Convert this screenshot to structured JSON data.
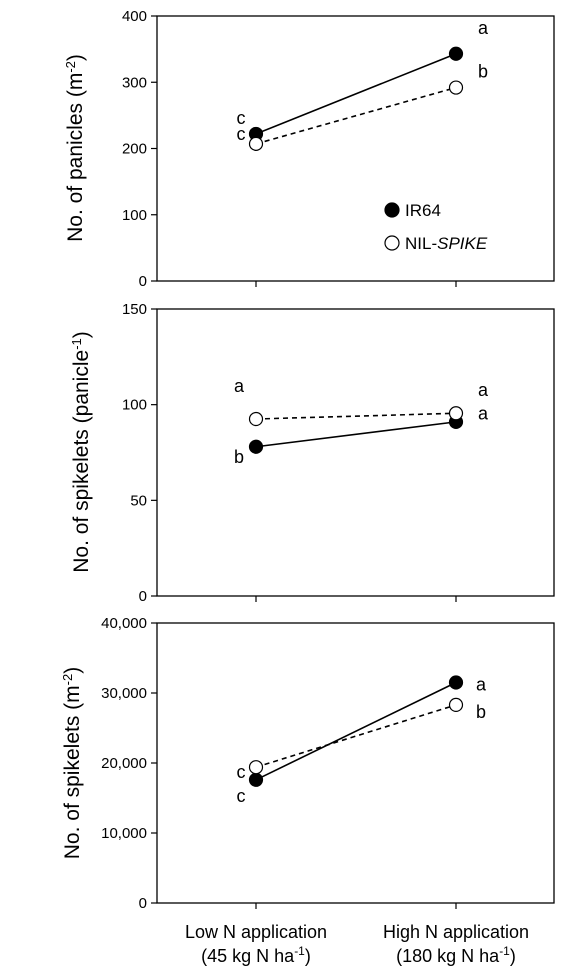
{
  "chart_data": [
    {
      "type": "line",
      "ylabel": "No. of panicles",
      "ylabel_unit_base": "(m",
      "ylabel_unit_sup": "-2",
      "ylabel_unit_close": ")",
      "ylim": [
        0,
        400
      ],
      "yticks": [
        "0",
        "100",
        "200",
        "300",
        "400"
      ],
      "ytick_values": [
        0,
        100,
        200,
        300,
        400
      ],
      "x_categories": [
        "Low N application",
        "High N application"
      ],
      "series": [
        {
          "name": "IR64",
          "marker": "filled-circle",
          "line": "solid",
          "values": [
            222,
            343
          ],
          "letters": [
            "c",
            "a"
          ]
        },
        {
          "name": "NIL-SPIKE",
          "marker": "open-circle",
          "line": "dashed",
          "values": [
            207,
            292
          ],
          "letters": [
            "c",
            "b"
          ]
        }
      ],
      "legend": {
        "position": "inside-bottom-right",
        "items": [
          {
            "prefix": "IR64",
            "italic": ""
          },
          {
            "prefix": "NIL-",
            "italic": "SPIKE"
          }
        ]
      }
    },
    {
      "type": "line",
      "ylabel": "No. of spikelets",
      "ylabel_unit_base": "(panicle",
      "ylabel_unit_sup": "-1",
      "ylabel_unit_close": ")",
      "ylim": [
        0,
        150
      ],
      "yticks": [
        "0",
        "50",
        "100",
        "150"
      ],
      "ytick_values": [
        0,
        50,
        100,
        150
      ],
      "x_categories": [
        "Low N application",
        "High N application"
      ],
      "series": [
        {
          "name": "IR64",
          "marker": "filled-circle",
          "line": "solid",
          "values": [
            78,
            91
          ],
          "letters": [
            "b",
            "a"
          ]
        },
        {
          "name": "NIL-SPIKE",
          "marker": "open-circle",
          "line": "dashed",
          "values": [
            92.5,
            95.5
          ],
          "letters": [
            "a",
            "a"
          ]
        }
      ]
    },
    {
      "type": "line",
      "ylabel": "No. of spikelets",
      "ylabel_unit_base": "(m",
      "ylabel_unit_sup": "-2",
      "ylabel_unit_close": ")",
      "ylim": [
        0,
        40000
      ],
      "yticks": [
        "0",
        "10,000",
        "20,000",
        "30,000",
        "40,000"
      ],
      "ytick_values": [
        0,
        10000,
        20000,
        30000,
        40000
      ],
      "x_categories": [
        "Low N application",
        "High N application"
      ],
      "series": [
        {
          "name": "IR64",
          "marker": "filled-circle",
          "line": "solid",
          "values": [
            17600,
            31500
          ],
          "letters": [
            "c",
            "a"
          ]
        },
        {
          "name": "NIL-SPIKE",
          "marker": "open-circle",
          "line": "dashed",
          "values": [
            19400,
            28300
          ],
          "letters": [
            "c",
            "b"
          ]
        }
      ]
    }
  ],
  "x_axis_labels": [
    {
      "line1": "Low N application",
      "line2_base": "(45 kg N ha",
      "line2_sup": "-1",
      "line2_close": ")"
    },
    {
      "line1": "High N application",
      "line2_base": "(180 kg N ha",
      "line2_sup": "-1",
      "line2_close": ")"
    }
  ]
}
